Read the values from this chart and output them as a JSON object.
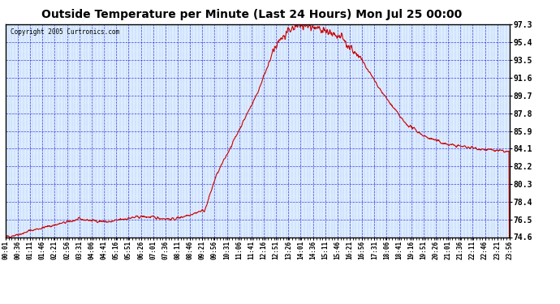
{
  "title": "Outside Temperature per Minute (Last 24 Hours) Mon Jul 25 00:00",
  "copyright": "Copyright 2005 Curtronics.com",
  "background_color": "#ffffff",
  "plot_bg_color": "#ddeeff",
  "grid_color": "#0000cc",
  "line_color": "#cc0000",
  "text_color": "#000000",
  "title_color": "#000000",
  "ymin": 74.6,
  "ymax": 97.3,
  "yticks": [
    74.6,
    76.5,
    78.4,
    80.3,
    82.2,
    84.1,
    85.9,
    87.8,
    89.7,
    91.6,
    93.5,
    95.4,
    97.3
  ],
  "xtick_labels": [
    "00:01",
    "00:36",
    "01:11",
    "01:46",
    "02:21",
    "02:56",
    "03:31",
    "04:06",
    "04:41",
    "05:16",
    "05:51",
    "06:26",
    "07:01",
    "07:36",
    "08:11",
    "08:46",
    "09:21",
    "09:56",
    "10:31",
    "11:06",
    "11:41",
    "12:16",
    "12:51",
    "13:26",
    "14:01",
    "14:36",
    "15:11",
    "15:46",
    "16:21",
    "16:56",
    "17:31",
    "18:06",
    "18:41",
    "19:16",
    "19:51",
    "20:26",
    "21:01",
    "21:36",
    "22:11",
    "22:46",
    "23:21",
    "23:56"
  ]
}
